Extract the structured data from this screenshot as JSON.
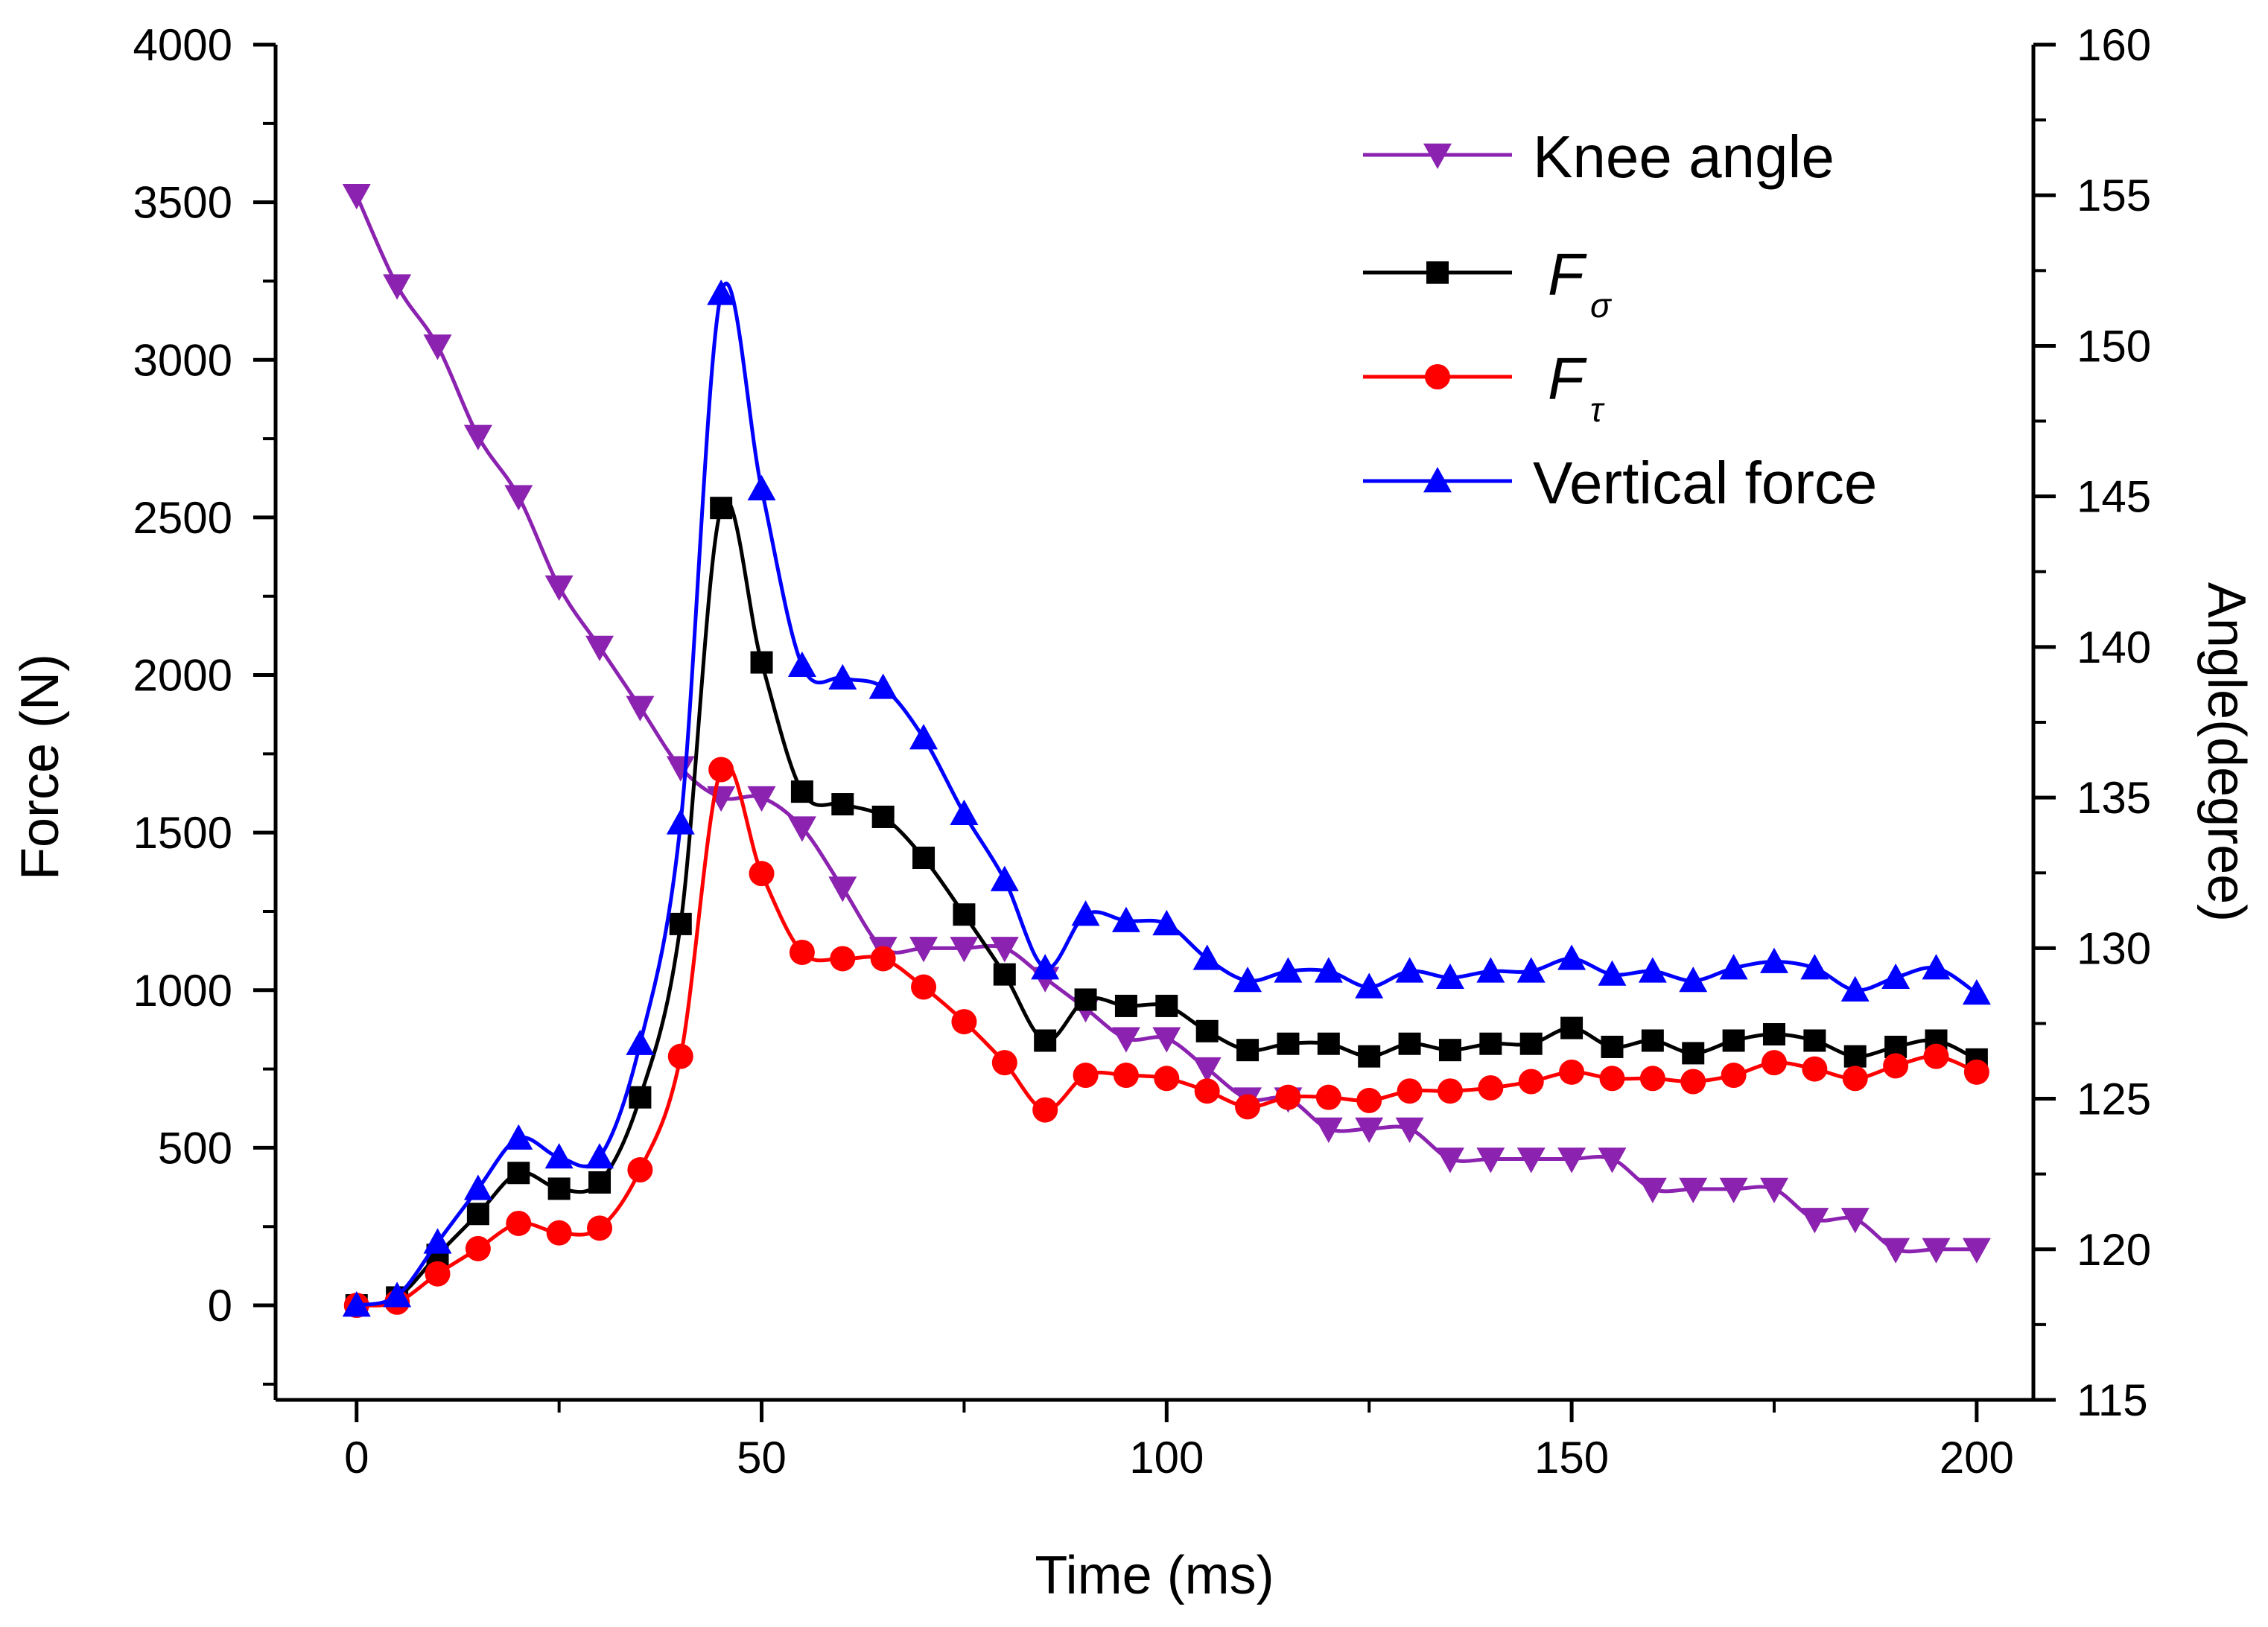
{
  "chart_data": {
    "type": "line",
    "xlabel": "Time (ms)",
    "ylabel": "Force (N)",
    "y2label": "Angle(degree)",
    "xlim": [
      -10,
      207
    ],
    "ylim": [
      -300,
      4000
    ],
    "y2lim": [
      115,
      160
    ],
    "xticks": [
      0,
      50,
      100,
      150,
      200
    ],
    "yticks": [
      0,
      500,
      1000,
      1500,
      2000,
      2500,
      3000,
      3500,
      4000
    ],
    "y2ticks": [
      115,
      120,
      125,
      130,
      135,
      140,
      145,
      150,
      155,
      160
    ],
    "legend_position": "top-right",
    "x": [
      0,
      5,
      10,
      15,
      20,
      25,
      30,
      35,
      40,
      45,
      50,
      55,
      60,
      65,
      70,
      75,
      80,
      85,
      90,
      95,
      100,
      105,
      110,
      115,
      120,
      125,
      130,
      135,
      140,
      145,
      150,
      155,
      160,
      165,
      170,
      175,
      180,
      185,
      190,
      195,
      200
    ],
    "series": [
      {
        "name": "Knee angle",
        "legend_label": "Knee angle",
        "axis": "right",
        "color": "#8B22B0",
        "marker": "triangle-down",
        "values": [
          155,
          152,
          150,
          147,
          145,
          142,
          140,
          138,
          136,
          135,
          135,
          134,
          132,
          130,
          130,
          130,
          130,
          129,
          128,
          127,
          127,
          126,
          125,
          125,
          124,
          124,
          124,
          123,
          123,
          123,
          123,
          123,
          122,
          122,
          122,
          122,
          121,
          121,
          120,
          120,
          120
        ]
      },
      {
        "name": "F_sigma",
        "legend_label": "F",
        "legend_sub": "σ",
        "axis": "left",
        "color": "#000000",
        "marker": "square",
        "values": [
          0,
          25,
          160,
          290,
          420,
          370,
          390,
          660,
          1210,
          2530,
          2040,
          1630,
          1590,
          1550,
          1420,
          1240,
          1050,
          840,
          970,
          950,
          950,
          870,
          810,
          830,
          830,
          790,
          830,
          810,
          830,
          830,
          880,
          820,
          840,
          800,
          840,
          860,
          840,
          790,
          820,
          840,
          780
        ]
      },
      {
        "name": "F_tau",
        "legend_label": "F",
        "legend_sub": "τ",
        "axis": "left",
        "color": "#FF0000",
        "marker": "circle",
        "values": [
          0,
          10,
          100,
          180,
          260,
          230,
          245,
          430,
          790,
          1700,
          1370,
          1120,
          1100,
          1100,
          1010,
          900,
          770,
          620,
          730,
          730,
          720,
          680,
          630,
          660,
          660,
          650,
          680,
          680,
          690,
          710,
          740,
          720,
          720,
          710,
          730,
          770,
          750,
          720,
          760,
          790,
          740
        ]
      },
      {
        "name": "Vertical force",
        "legend_label": "Vertical force",
        "axis": "left",
        "color": "#0000FF",
        "marker": "triangle-up",
        "values": [
          0,
          30,
          200,
          370,
          530,
          470,
          470,
          830,
          1530,
          3210,
          2590,
          2030,
          1990,
          1960,
          1800,
          1560,
          1350,
          1070,
          1240,
          1220,
          1210,
          1100,
          1030,
          1060,
          1060,
          1010,
          1060,
          1040,
          1060,
          1060,
          1100,
          1050,
          1060,
          1030,
          1070,
          1090,
          1070,
          1000,
          1040,
          1070,
          990
        ]
      }
    ]
  }
}
